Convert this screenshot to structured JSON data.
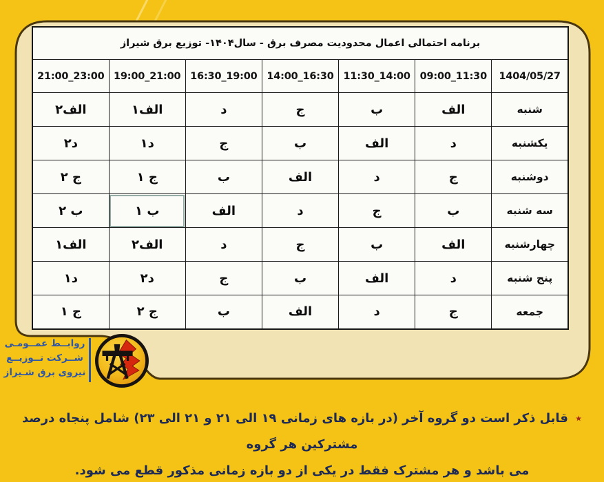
{
  "colors": {
    "background": "#F5C316",
    "card": "#F2E3B5",
    "card_border": "#4A370F",
    "table_bg": "#FBFBF8",
    "note_text": "#1C2A55",
    "asterisk": "#A6261A",
    "logo_blue": "#2F57A8",
    "lightning_red": "#D6280E"
  },
  "table": {
    "title": "برنامه احتمالی اعمال محدودیت مصرف برق - سال۱۴۰۴- توزیع برق شیراز",
    "date_header": "1404/05/27",
    "time_headers": [
      "09:00_11:30",
      "11:30_14:00",
      "14:00_16:30",
      "16:30_19:00",
      "19:00_21:00",
      "21:00_23:00"
    ],
    "rows": [
      {
        "day": "شنبه",
        "values": [
          "الف",
          "ب",
          "ج",
          "د",
          "الف۱",
          "الف۲"
        ]
      },
      {
        "day": "یکشنبه",
        "values": [
          "د",
          "الف",
          "ب",
          "ج",
          "د۱",
          "د۲"
        ]
      },
      {
        "day": "دوشنبه",
        "values": [
          "ج",
          "د",
          "الف",
          "ب",
          "ج ۱",
          "ج ۲"
        ]
      },
      {
        "day": "سه شنبه",
        "values": [
          "ب",
          "ج",
          "د",
          "الف",
          "ب ۱",
          "ب ۲"
        ]
      },
      {
        "day": "چهارشنبه",
        "values": [
          "الف",
          "ب",
          "ج",
          "د",
          "الف۲",
          "الف۱"
        ]
      },
      {
        "day": "پنج شنبه",
        "values": [
          "د",
          "الف",
          "ب",
          "ج",
          "د۲",
          "د۱"
        ]
      },
      {
        "day": "جمعه",
        "values": [
          "ج",
          "د",
          "الف",
          "ب",
          "ج ۲",
          "ج ۱"
        ]
      }
    ],
    "highlighted_cell": {
      "row": 3,
      "col": 4
    }
  },
  "logo": {
    "lines": [
      "روابــط عمــومـی",
      "شــرکت تــوزیــع",
      "نیروی برق شـیراز"
    ]
  },
  "note": {
    "asterisk": "٭",
    "line1": "قابل ذکر است دو گروه آخر (در بازه های زمانی ۱۹ الی ۲۱ و ۲۱ الی ۲۳) شامل پنجاه درصد مشترکین هر گروه",
    "line2": "می باشد و هر مشترک فقط در یکی از دو بازه زمانی مذکور قطع می شود."
  }
}
